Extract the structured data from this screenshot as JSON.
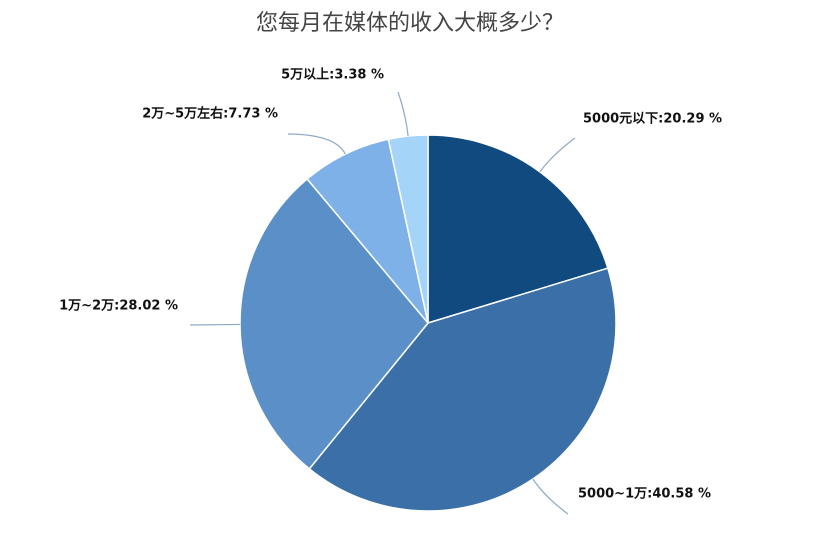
{
  "chart_data": {
    "type": "pie",
    "title": "您每月在媒体的收入大概多少？",
    "values": [
      20.29,
      40.58,
      28.02,
      7.73,
      3.38
    ],
    "value_labels": [
      "5000元以下:20.29 %",
      "5000~1万:40.58 %",
      "1万~2万:28.02 %",
      "2万~5万左右:7.73 %",
      "5万以上:3.38 %"
    ],
    "colors": [
      "#114a7e",
      "#3a6fa8",
      "#5a8fc8",
      "#7eb1e8",
      "#a4d4f7"
    ]
  }
}
